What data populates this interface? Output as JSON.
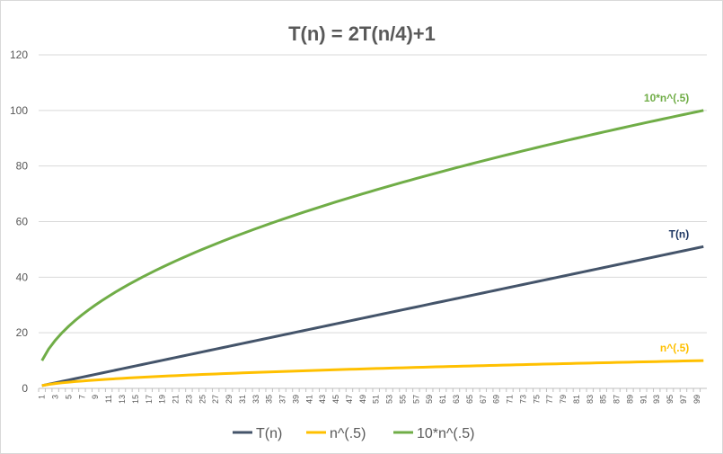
{
  "chart_data": {
    "type": "line",
    "title": "T(n) = 2T(n/4)+1",
    "xlabel": "",
    "ylabel": "",
    "ylim": [
      0,
      120
    ],
    "y_ticks": [
      "0",
      "20",
      "40",
      "60",
      "80",
      "100",
      "120"
    ],
    "x_range": [
      1,
      100
    ],
    "x_tick_step": 2,
    "grid": true,
    "legend_position": "bottom",
    "series": [
      {
        "name": "T(n)",
        "color": "#44546a",
        "label_color": "#1f3864",
        "formula": "2*sqrt(n)-1 (approx. of T(n)=2T(n/4)+1)",
        "start": 1,
        "end": 51,
        "inline_label": "T(n)"
      },
      {
        "name": "n^(.5)",
        "color": "#ffc000",
        "label_color": "#ffc000",
        "formula": "sqrt(n)",
        "start": 1,
        "end": 10,
        "inline_label": "n^(.5)"
      },
      {
        "name": "10*n^(.5)",
        "color": "#70ad47",
        "label_color": "#70ad47",
        "formula": "10*sqrt(n)",
        "start": 10,
        "end": 100,
        "inline_label": "10*n^(.5)"
      }
    ]
  }
}
